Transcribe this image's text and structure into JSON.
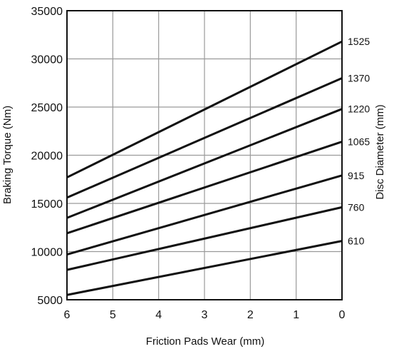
{
  "chart_data": {
    "type": "line",
    "title": "",
    "xlabel": "Friction Pads Wear (mm)",
    "ylabel": "Braking Torque (Nm)",
    "y2label": "Disc Diameter (mm)",
    "xlim": [
      6,
      0
    ],
    "ylim": [
      5000,
      35000
    ],
    "x_ticks": [
      6,
      5,
      4,
      3,
      2,
      1,
      0
    ],
    "y_ticks": [
      5000,
      10000,
      15000,
      20000,
      25000,
      30000,
      35000
    ],
    "grid": true,
    "line_color": "#111111",
    "grid_color": "#9a9a9a",
    "series": [
      {
        "name": "1525",
        "x": [
          6,
          0
        ],
        "values": [
          17700,
          31800
        ]
      },
      {
        "name": "1370",
        "x": [
          6,
          0
        ],
        "values": [
          15600,
          28000
        ]
      },
      {
        "name": "1220",
        "x": [
          6,
          0
        ],
        "values": [
          13500,
          24800
        ]
      },
      {
        "name": "1065",
        "x": [
          6,
          0
        ],
        "values": [
          11900,
          21400
        ]
      },
      {
        "name": "915",
        "x": [
          6,
          0
        ],
        "values": [
          9700,
          17900
        ]
      },
      {
        "name": "760",
        "x": [
          6,
          0
        ],
        "values": [
          8100,
          14600
        ]
      },
      {
        "name": "610",
        "x": [
          6,
          0
        ],
        "values": [
          5500,
          11100
        ]
      }
    ]
  }
}
